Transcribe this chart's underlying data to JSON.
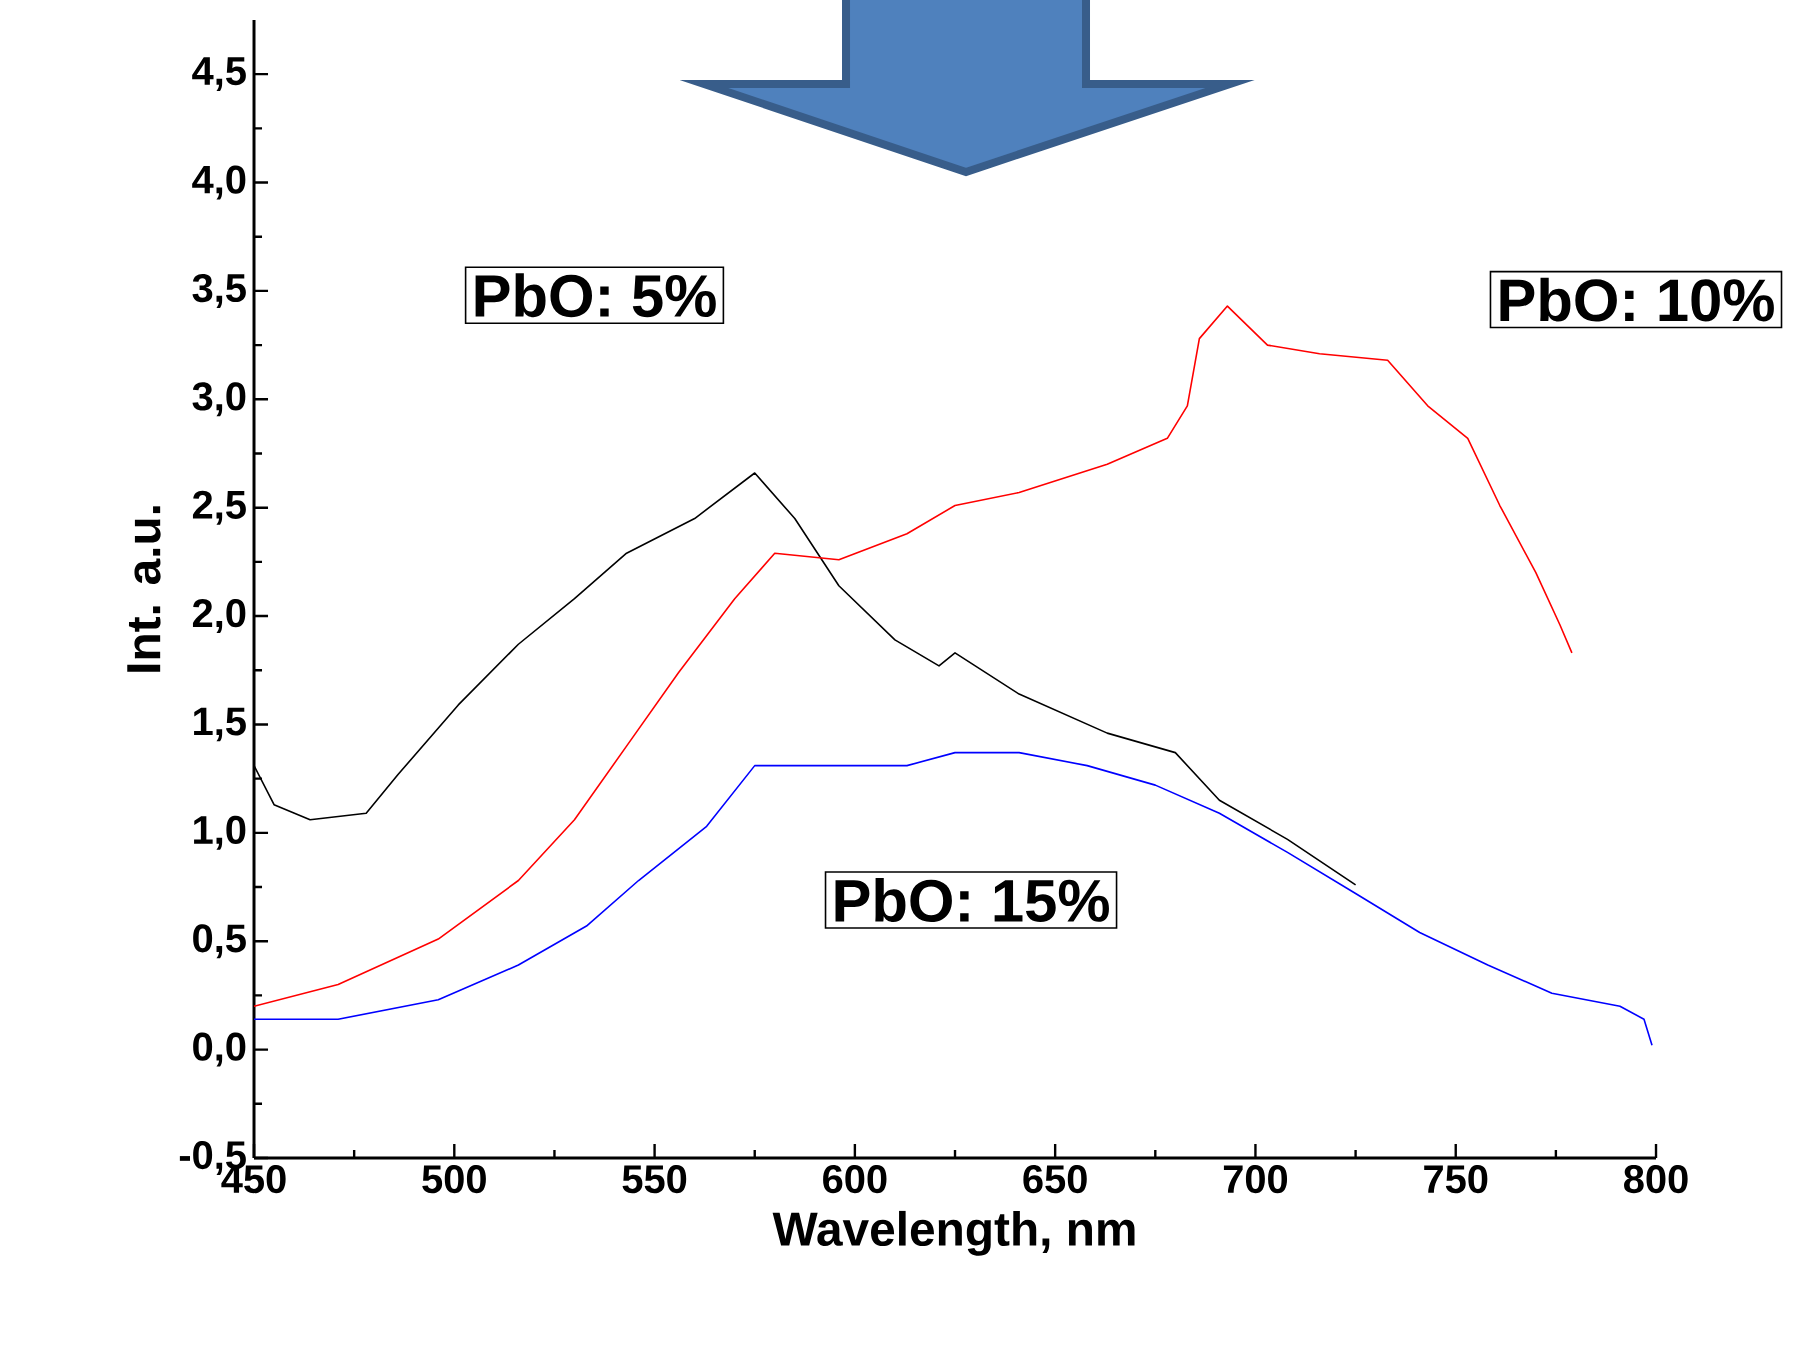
{
  "chart_data": {
    "type": "line",
    "xlabel": "Wavelength, nm",
    "ylabel": "Int. a.u.",
    "xlim": [
      450,
      800
    ],
    "ylim": [
      -0.5,
      4.75
    ],
    "xticks": [
      450,
      500,
      550,
      600,
      650,
      700,
      750,
      800
    ],
    "yticks": [
      {
        "value": -0.5,
        "label": "-0,5"
      },
      {
        "value": 0,
        "label": "0,0"
      },
      {
        "value": 0.5,
        "label": "0,5"
      },
      {
        "value": 1,
        "label": "1,0"
      },
      {
        "value": 1.5,
        "label": "1,5"
      },
      {
        "value": 2,
        "label": "2,0"
      },
      {
        "value": 2.5,
        "label": "2,5"
      },
      {
        "value": 3,
        "label": "3,0"
      },
      {
        "value": 3.5,
        "label": "3,5"
      },
      {
        "value": 4,
        "label": "4,0"
      },
      {
        "value": 4.5,
        "label": "4,5"
      }
    ],
    "grid": false,
    "legend": false,
    "marker": "none",
    "series": [
      {
        "name": "PbO: 5%",
        "color": "#000000",
        "x": [
          450,
          455,
          464,
          478,
          486,
          501,
          516,
          530,
          543,
          560,
          575,
          585,
          596,
          610,
          621,
          625,
          641,
          663,
          680,
          691,
          708,
          725
        ],
        "values": [
          1.31,
          1.13,
          1.06,
          1.09,
          1.27,
          1.59,
          1.87,
          2.08,
          2.29,
          2.45,
          2.66,
          2.45,
          2.14,
          1.89,
          1.77,
          1.83,
          1.64,
          1.46,
          1.37,
          1.15,
          0.97,
          0.76
        ]
      },
      {
        "name": "PbO: 10%",
        "color": "#ff0000",
        "x": [
          450,
          471,
          496,
          516,
          530,
          543,
          556,
          570,
          580,
          596,
          613,
          625,
          641,
          663,
          678,
          683,
          686,
          693,
          703,
          716,
          733,
          743,
          753,
          761,
          770,
          776,
          779
        ],
        "values": [
          0.2,
          0.3,
          0.51,
          0.78,
          1.06,
          1.4,
          1.74,
          2.08,
          2.29,
          2.26,
          2.38,
          2.51,
          2.57,
          2.7,
          2.82,
          2.97,
          3.28,
          3.43,
          3.25,
          3.21,
          3.18,
          2.97,
          2.82,
          2.51,
          2.2,
          1.96,
          1.83
        ]
      },
      {
        "name": "PbO: 15%",
        "color": "#0000ff",
        "x": [
          450,
          471,
          496,
          516,
          533,
          546,
          563,
          575,
          588,
          613,
          625,
          641,
          658,
          675,
          691,
          708,
          725,
          741,
          758,
          774,
          791,
          797,
          799
        ],
        "values": [
          0.14,
          0.14,
          0.23,
          0.39,
          0.57,
          0.78,
          1.03,
          1.31,
          1.31,
          1.31,
          1.37,
          1.37,
          1.31,
          1.22,
          1.09,
          0.91,
          0.72,
          0.54,
          0.39,
          0.26,
          0.2,
          0.14,
          0.02
        ]
      }
    ]
  }
}
